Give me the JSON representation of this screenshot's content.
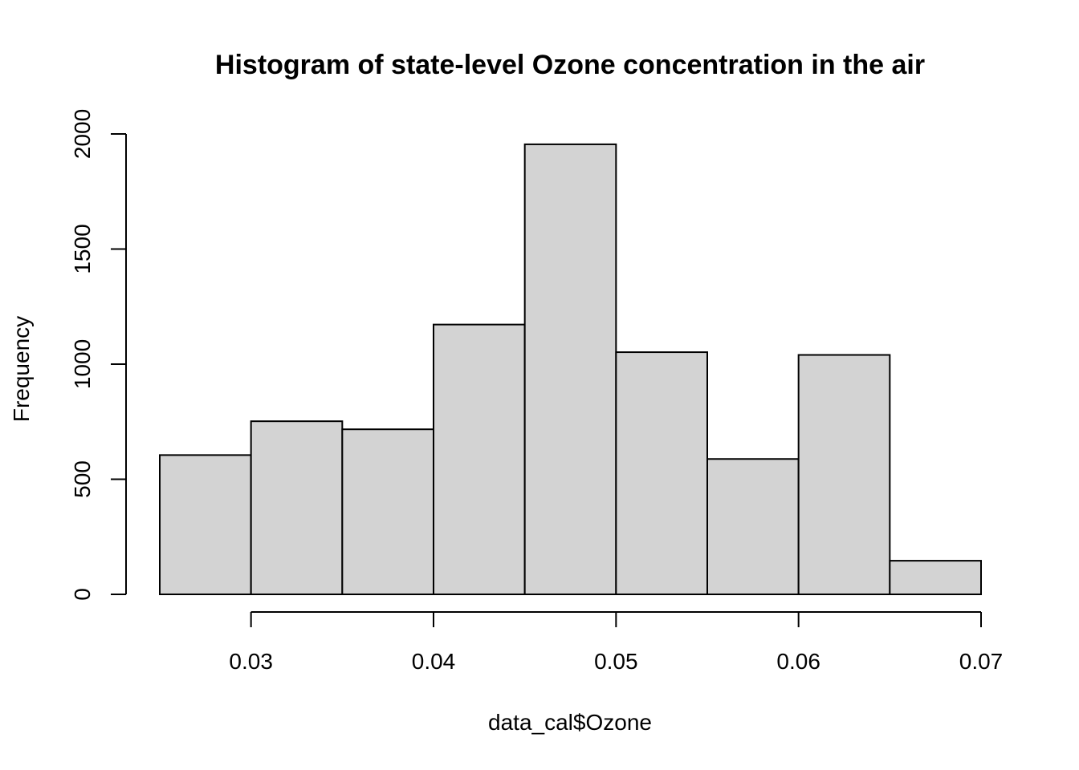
{
  "chart_data": {
    "type": "bar",
    "title": "Histogram of state-level Ozone concentration in the air",
    "xlabel": "data_cal$Ozone",
    "ylabel": "Frequency",
    "bins": [
      {
        "x0": 0.025,
        "x1": 0.03,
        "count": 605
      },
      {
        "x0": 0.03,
        "x1": 0.035,
        "count": 752
      },
      {
        "x0": 0.035,
        "x1": 0.04,
        "count": 717
      },
      {
        "x0": 0.04,
        "x1": 0.045,
        "count": 1172
      },
      {
        "x0": 0.045,
        "x1": 0.05,
        "count": 1955
      },
      {
        "x0": 0.05,
        "x1": 0.055,
        "count": 1052
      },
      {
        "x0": 0.055,
        "x1": 0.06,
        "count": 588
      },
      {
        "x0": 0.06,
        "x1": 0.065,
        "count": 1040
      },
      {
        "x0": 0.065,
        "x1": 0.07,
        "count": 146
      }
    ],
    "xlim": [
      0.025,
      0.07
    ],
    "ylim": [
      0,
      2000
    ],
    "x_ticks": [
      "0.03",
      "0.04",
      "0.05",
      "0.06",
      "0.07"
    ],
    "y_ticks": [
      "0",
      "500",
      "1000",
      "1500",
      "2000"
    ],
    "grid": false,
    "colors": {
      "bar_fill": "#d3d3d3",
      "bar_stroke": "#000000"
    }
  }
}
